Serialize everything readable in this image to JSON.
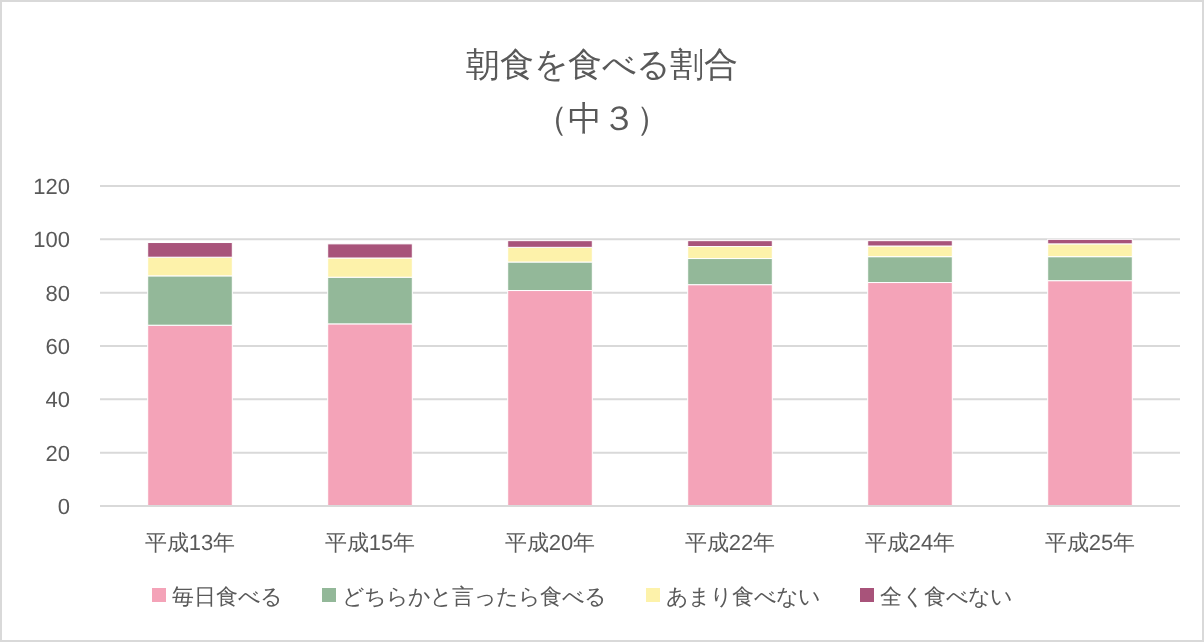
{
  "chart_data": {
    "type": "bar",
    "stacked": true,
    "title": "朝食を食べる割合",
    "subtitle": "（中３）",
    "categories": [
      "平成13年",
      "平成15年",
      "平成20年",
      "平成22年",
      "平成24年",
      "平成25年"
    ],
    "series": [
      {
        "name": "毎日食べる",
        "color": "#f4a3b8",
        "values": [
          67.8,
          68.3,
          80.8,
          83.0,
          83.8,
          84.5
        ]
      },
      {
        "name": "どちらかと言ったら食べる",
        "color": "#93b899",
        "values": [
          18.5,
          17.5,
          10.7,
          9.8,
          9.7,
          9.0
        ]
      },
      {
        "name": "あまり食べない",
        "color": "#fdf2aa",
        "values": [
          7.0,
          7.2,
          5.5,
          4.5,
          4.0,
          4.8
        ]
      },
      {
        "name": "全く食べない",
        "color": "#a8537a",
        "values": [
          5.5,
          5.3,
          2.5,
          2.2,
          2.0,
          1.7
        ]
      }
    ],
    "ylim": [
      0,
      120
    ],
    "yticks": [
      0,
      20,
      40,
      60,
      80,
      100,
      120
    ],
    "grid": "y",
    "legend": "bottom"
  }
}
